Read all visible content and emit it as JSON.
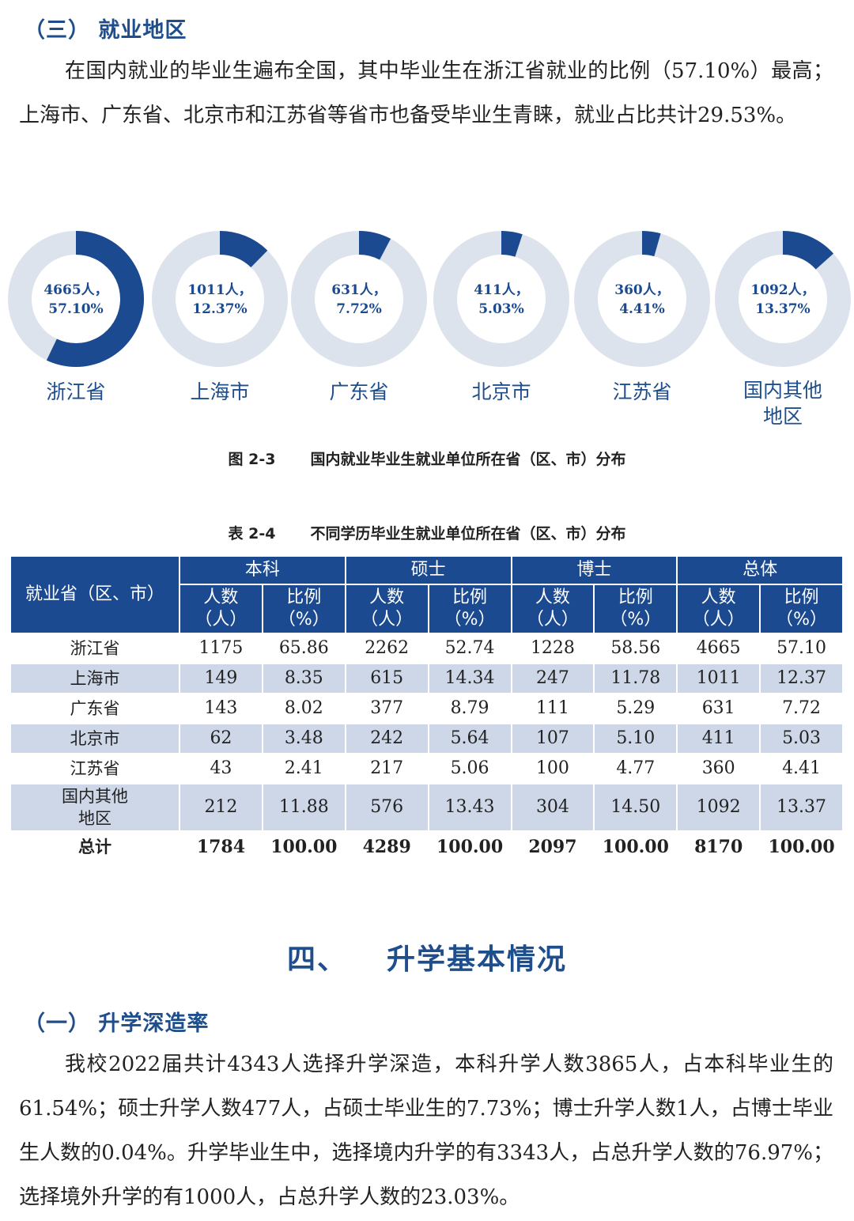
{
  "section3": {
    "heading": "（三）  就业地区",
    "paragraph": "在国内就业的毕业生遍布全国，其中毕业生在浙江省就业的比例（57.10%）最高；上海市、广东省、北京市和江苏省等省市也备受毕业生青睐，就业占比共计29.53%。"
  },
  "chart_data": {
    "type": "pie",
    "title": "国内就业毕业生就业单位所在省（区、市）分布",
    "figure_number": "图 2-3",
    "slices": [
      {
        "label": "浙江省",
        "count": "4665人，",
        "percent": "57.10%",
        "value": 57.1
      },
      {
        "label": "上海市",
        "count": "1011人，",
        "percent": "12.37%",
        "value": 12.37
      },
      {
        "label": "广东省",
        "count": "631人，",
        "percent": "7.72%",
        "value": 7.72
      },
      {
        "label": "北京市",
        "count": "411人，",
        "percent": "5.03%",
        "value": 5.03
      },
      {
        "label": "江苏省",
        "count": "360人，",
        "percent": "4.41%",
        "value": 4.41
      },
      {
        "label": "国内其他地区",
        "label_lines": [
          "国内其他",
          "地区"
        ],
        "count": "1092人，",
        "percent": "13.37%",
        "value": 13.37
      }
    ],
    "colors": {
      "filled": "#1b4a90",
      "remainder": "#dde3ec"
    }
  },
  "table": {
    "number": "表 2-4",
    "title": "不同学历毕业生就业单位所在省（区、市）分布",
    "region_header": "就业省（区、市）",
    "groups": [
      "本科",
      "硕士",
      "博士",
      "总体"
    ],
    "sub_headers": {
      "count": [
        "人数",
        "（人）"
      ],
      "ratio": [
        "比例",
        "（%）"
      ]
    },
    "rows": [
      {
        "region": "浙江省",
        "cells": [
          "1175",
          "65.86",
          "2262",
          "52.74",
          "1228",
          "58.56",
          "4665",
          "57.10"
        ]
      },
      {
        "region": "上海市",
        "cells": [
          "149",
          "8.35",
          "615",
          "14.34",
          "247",
          "11.78",
          "1011",
          "12.37"
        ]
      },
      {
        "region": "广东省",
        "cells": [
          "143",
          "8.02",
          "377",
          "8.79",
          "111",
          "5.29",
          "631",
          "7.72"
        ]
      },
      {
        "region": "北京市",
        "cells": [
          "62",
          "3.48",
          "242",
          "5.64",
          "107",
          "5.10",
          "411",
          "5.03"
        ]
      },
      {
        "region": "江苏省",
        "cells": [
          "43",
          "2.41",
          "217",
          "5.06",
          "100",
          "4.77",
          "360",
          "4.41"
        ]
      },
      {
        "region_lines": [
          "国内其他",
          "地区"
        ],
        "cells": [
          "212",
          "11.88",
          "576",
          "13.43",
          "304",
          "14.50",
          "1092",
          "13.37"
        ]
      }
    ],
    "total": {
      "label": "总计",
      "cells": [
        "1784",
        "100.00",
        "4289",
        "100.00",
        "2097",
        "100.00",
        "8170",
        "100.00"
      ]
    }
  },
  "section4": {
    "number": "四、",
    "title": "升学基本情况"
  },
  "section4_1": {
    "heading": "（一）  升学深造率",
    "paragraph": "我校2022届共计4343人选择升学深造，本科升学人数3865人，占本科毕业生的61.54%；硕士升学人数477人，占硕士毕业生的7.73%；博士升学人数1人，占博士毕业生人数的0.04%。升学毕业生中，选择境内升学的有3343人，占总升学人数的76.97%；选择境外升学的有1000人，占总升学人数的23.03%。"
  },
  "colors": {
    "heading": "#1f4e8c",
    "table_header": "#1b4a90",
    "table_alt_row": "#cdd7e8"
  }
}
